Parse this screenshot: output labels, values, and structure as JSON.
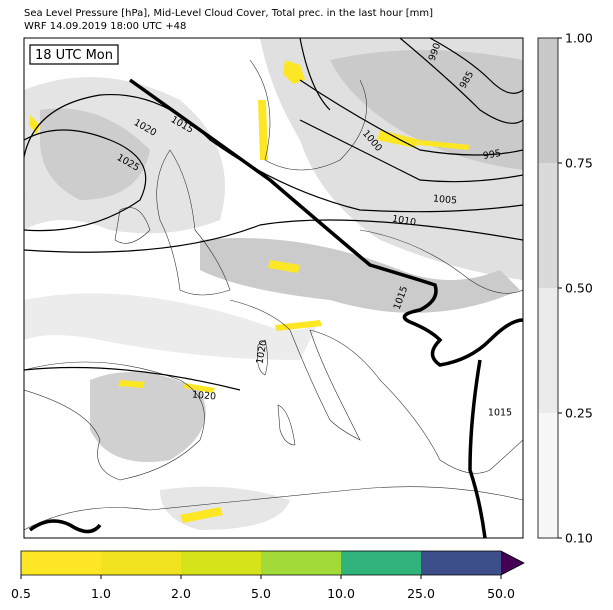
{
  "header": {
    "title": "Sea Level Pressure [hPa], Mid-Level Cloud Cover, Total prec. in the last hour [mm]",
    "subtitle": "WRF 14.09.2019 18:00 UTC +48"
  },
  "map": {
    "time_label": "18 UTC Mon",
    "contour_labels": [
      "990",
      "985",
      "995",
      "1000",
      "1005",
      "1010",
      "1015",
      "1020",
      "1025",
      "1015",
      "1020",
      "1020",
      "1015"
    ]
  },
  "cloud_colorbar": {
    "ticks": [
      "0.10",
      "0.25",
      "0.50",
      "0.75",
      "1.00"
    ],
    "colors": [
      "#f7f7f7",
      "#ebebeb",
      "#dadada",
      "#c8c8c8"
    ]
  },
  "precip_colorbar": {
    "ticks": [
      "0.5",
      "1.0",
      "2.0",
      "5.0",
      "10.0",
      "25.0",
      "50.0"
    ],
    "colors": [
      "#fde725",
      "#f1e31f",
      "#d6e21a",
      "#a2da37",
      "#31b47b",
      "#3d4f8a"
    ],
    "extend_color": "#440154"
  }
}
